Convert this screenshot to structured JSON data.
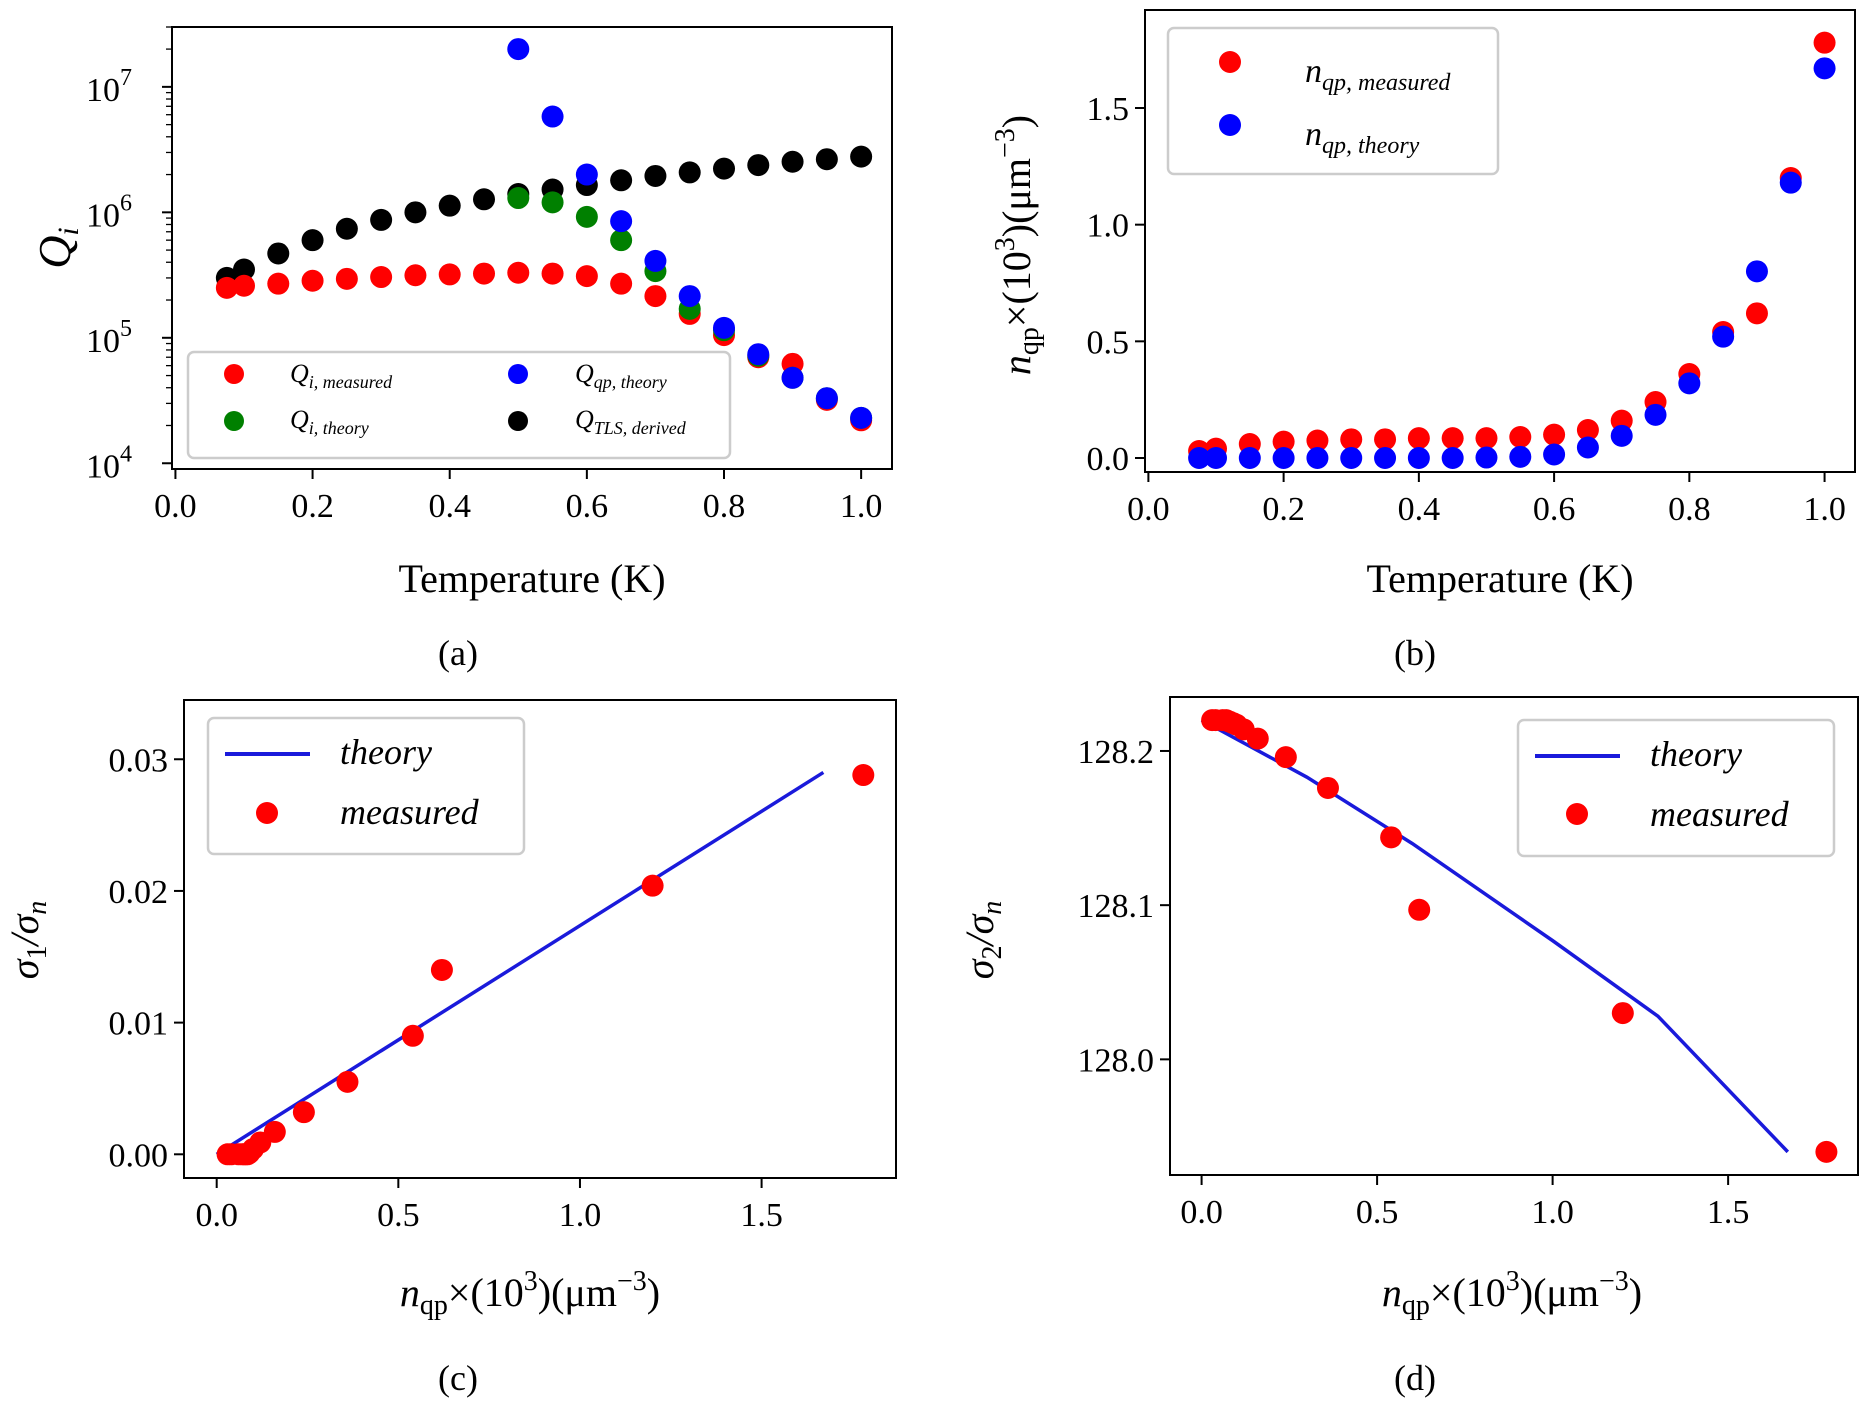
{
  "colors": {
    "red": "#ff0000",
    "green": "#008000",
    "blue": "#0000ff",
    "black": "#000000",
    "line": "#1a1adb"
  },
  "chart_data": [
    {
      "type": "scatter",
      "panel": "(a)",
      "xlabel": "Temperature (K)",
      "ylabel": "Q_i",
      "yscale": "log",
      "xlim": [
        -0.005,
        1.045
      ],
      "ylim": [
        9000,
        30000000
      ],
      "xticks": [
        "0.0",
        "0.2",
        "0.4",
        "0.6",
        "0.8",
        "1.0"
      ],
      "yticks": [
        {
          "value": 10000,
          "base": "10",
          "exp": "4"
        },
        {
          "value": 100000,
          "base": "10",
          "exp": "5"
        },
        {
          "value": 1000000,
          "base": "10",
          "exp": "6"
        },
        {
          "value": 10000000,
          "base": "10",
          "exp": "7"
        }
      ],
      "legend_position": "lower-left",
      "legend_columns": 2,
      "series": [
        {
          "key": "qim",
          "main": "Q",
          "sub": "i, measured",
          "color": "#ff0000",
          "x": [
            0.075,
            0.1,
            0.15,
            0.2,
            0.25,
            0.3,
            0.35,
            0.4,
            0.45,
            0.5,
            0.55,
            0.6,
            0.65,
            0.7,
            0.75,
            0.8,
            0.85,
            0.9,
            0.95,
            1.0
          ],
          "y": [
            250000,
            260000,
            270000,
            285000,
            295000,
            305000,
            315000,
            320000,
            325000,
            330000,
            325000,
            310000,
            270000,
            215000,
            155000,
            105000,
            70000,
            62000,
            32000,
            22000
          ]
        },
        {
          "key": "qit",
          "main": "Q",
          "sub": "i, theory",
          "color": "#008000",
          "x": [
            0.5,
            0.55,
            0.6,
            0.65,
            0.7,
            0.75,
            0.8,
            0.85,
            0.9,
            0.95,
            1.0
          ],
          "y": [
            1300000,
            1200000,
            920000,
            600000,
            340000,
            170000,
            115000,
            72000,
            48000,
            33000,
            23000
          ]
        },
        {
          "key": "qqp",
          "main": "Q",
          "sub": "qp, theory",
          "color": "#0000ff",
          "x": [
            0.5,
            0.55,
            0.6,
            0.65,
            0.7,
            0.75,
            0.8,
            0.85,
            0.9,
            0.95,
            1.0
          ],
          "y": [
            20000000,
            5800000,
            2000000,
            850000,
            410000,
            215000,
            120000,
            74000,
            48000,
            33000,
            23000
          ]
        },
        {
          "key": "qtls",
          "main": "Q",
          "sub": "TLS, derived",
          "color": "#000000",
          "x": [
            0.075,
            0.1,
            0.15,
            0.2,
            0.25,
            0.3,
            0.35,
            0.4,
            0.45,
            0.5,
            0.55,
            0.6,
            0.65,
            0.7,
            0.75,
            0.8,
            0.85,
            0.9,
            0.95,
            1.0
          ],
          "y": [
            300000,
            350000,
            470000,
            600000,
            740000,
            870000,
            1000000,
            1130000,
            1270000,
            1400000,
            1520000,
            1650000,
            1800000,
            1950000,
            2080000,
            2230000,
            2380000,
            2530000,
            2650000,
            2780000
          ]
        }
      ]
    },
    {
      "type": "scatter",
      "panel": "(b)",
      "xlabel": "Temperature (K)",
      "ylabel": "n_qp×(10^3)(μm^-3)",
      "xlim": [
        -0.005,
        1.045
      ],
      "ylim": [
        -0.06,
        1.92
      ],
      "xticks": [
        "0.0",
        "0.2",
        "0.4",
        "0.6",
        "0.8",
        "1.0"
      ],
      "yticks": [
        "0.0",
        "0.5",
        "1.0",
        "1.5"
      ],
      "legend_position": "upper-left",
      "series": [
        {
          "key": "nm",
          "main": "n",
          "sub": "qp, measured",
          "color": "#ff0000",
          "x": [
            0.075,
            0.1,
            0.15,
            0.2,
            0.25,
            0.3,
            0.35,
            0.4,
            0.45,
            0.5,
            0.55,
            0.6,
            0.65,
            0.7,
            0.75,
            0.8,
            0.85,
            0.9,
            0.95,
            1.0
          ],
          "y": [
            0.03,
            0.04,
            0.06,
            0.07,
            0.075,
            0.08,
            0.08,
            0.085,
            0.085,
            0.085,
            0.09,
            0.1,
            0.12,
            0.16,
            0.24,
            0.36,
            0.54,
            0.62,
            1.2,
            1.78
          ]
        },
        {
          "key": "nt",
          "main": "n",
          "sub": "qp, theory",
          "color": "#0000ff",
          "x": [
            0.075,
            0.1,
            0.15,
            0.2,
            0.25,
            0.3,
            0.35,
            0.4,
            0.45,
            0.5,
            0.55,
            0.6,
            0.65,
            0.7,
            0.75,
            0.8,
            0.85,
            0.9,
            0.95,
            1.0
          ],
          "y": [
            0.0,
            0.0,
            0.0,
            0.0,
            0.0,
            0.0,
            0.0,
            0.0,
            0.0,
            0.002,
            0.005,
            0.015,
            0.045,
            0.095,
            0.185,
            0.32,
            0.52,
            0.8,
            1.18,
            1.67
          ]
        }
      ]
    },
    {
      "type": "scatter",
      "panel": "(c)",
      "xlabel": "n_qp×(10^3)(μm^-3)",
      "ylabel": "σ1/σn",
      "xlim": [
        -0.09,
        1.87
      ],
      "ylim": [
        -0.0018,
        0.0345
      ],
      "xticks": [
        "0.0",
        "0.5",
        "1.0",
        "1.5"
      ],
      "yticks": [
        "0.00",
        "0.01",
        "0.02",
        "0.03"
      ],
      "legend_position": "upper-left",
      "line": {
        "label": "theory",
        "color": "#1a1adb",
        "x": [
          0.0,
          1.67
        ],
        "y": [
          0.0,
          0.029
        ]
      },
      "points": {
        "label": "measured",
        "color": "#ff0000",
        "x": [
          0.03,
          0.04,
          0.06,
          0.07,
          0.075,
          0.08,
          0.085,
          0.09,
          0.1,
          0.12,
          0.16,
          0.24,
          0.36,
          0.54,
          0.62,
          1.2,
          1.78
        ],
        "y": [
          0.0,
          0.0,
          0.0,
          0.0,
          0.0,
          0.0,
          0.0,
          0.0001,
          0.0004,
          0.0009,
          0.0017,
          0.0032,
          0.0055,
          0.009,
          0.014,
          0.0204,
          0.0288
        ]
      }
    },
    {
      "type": "scatter",
      "panel": "(d)",
      "xlabel": "n_qp×(10^3)(μm^-3)",
      "ylabel": "σ2/σn",
      "xlim": [
        -0.09,
        1.87
      ],
      "ylim": [
        127.925,
        128.235
      ],
      "xticks": [
        "0.0",
        "0.5",
        "1.0",
        "1.5"
      ],
      "yticks": [
        "128.0",
        "128.1",
        "128.2"
      ],
      "legend_position": "upper-right",
      "line": {
        "label": "theory",
        "color": "#1a1adb",
        "x": [
          0.0,
          0.3,
          0.6,
          1.0,
          1.3,
          1.67
        ],
        "y": [
          128.22,
          128.183,
          128.14,
          128.077,
          128.028,
          127.94
        ]
      },
      "points": {
        "label": "measured",
        "color": "#ff0000",
        "x": [
          0.03,
          0.04,
          0.06,
          0.07,
          0.08,
          0.09,
          0.1,
          0.12,
          0.16,
          0.24,
          0.36,
          0.54,
          0.62,
          1.2,
          1.78
        ],
        "y": [
          128.22,
          128.22,
          128.22,
          128.22,
          128.219,
          128.218,
          128.217,
          128.214,
          128.208,
          128.196,
          128.176,
          128.144,
          128.097,
          128.03,
          127.94
        ]
      }
    }
  ],
  "captions": {
    "a": "(a)",
    "b": "(b)",
    "c": "(c)",
    "d": "(d)"
  },
  "legend_c": {
    "theory": "theory",
    "measured": "measured"
  },
  "legend_d": {
    "theory": "theory",
    "measured": "measured"
  },
  "axis_text": {
    "temperature": "Temperature (K)",
    "qi_main": "Q",
    "qi_sub": "i",
    "n_main": "n",
    "n_sub": "qp",
    "times_paren": "×(10",
    "three": "3",
    "paren_um": ")(μm",
    "minus3": "−3",
    "close": ")",
    "sigma": "σ",
    "one": "1",
    "two": "2",
    "slash_sigma": "/σ",
    "n_sub_sigma": "n"
  }
}
